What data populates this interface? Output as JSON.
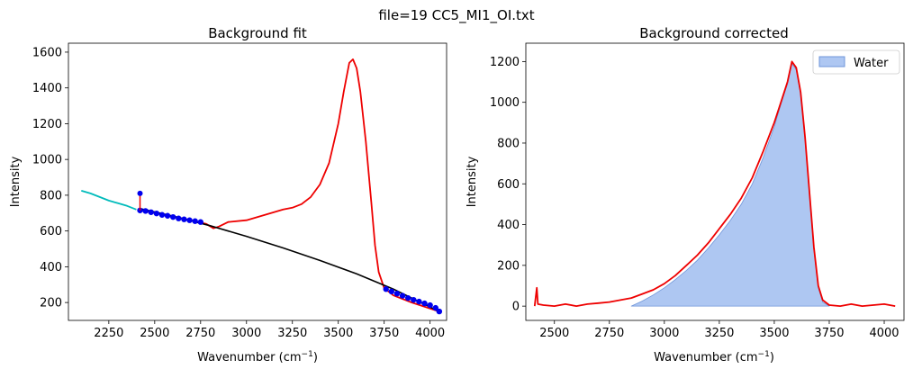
{
  "figure": {
    "suptitle": "file=19 CC5_MI1_OI.txt"
  },
  "chart_data": [
    {
      "type": "line",
      "title": "Background fit",
      "xlabel": "Wavenumber (cm",
      "xlabel_sup": "−1",
      "xlabel_end": ")",
      "ylabel": "Intensity",
      "xlim": [
        2030,
        4090
      ],
      "ylim": [
        100,
        1650
      ],
      "xticks": [
        2250,
        2500,
        2750,
        3000,
        3250,
        3500,
        3750,
        4000
      ],
      "yticks": [
        200,
        400,
        600,
        800,
        1000,
        1200,
        1400,
        1600
      ],
      "colors": {
        "spectrum": "#ee0000",
        "excluded": "#00bbbb",
        "points": "#0000ee",
        "fit": "#000000"
      },
      "series": [
        {
          "role": "spectrum",
          "x": [
            2420,
            2500,
            2600,
            2700,
            2780,
            2820,
            2850,
            2900,
            3000,
            3100,
            3200,
            3250,
            3300,
            3350,
            3400,
            3450,
            3500,
            3530,
            3560,
            3580,
            3600,
            3620,
            3650,
            3680,
            3700,
            3720,
            3750,
            3800,
            3900,
            4050
          ],
          "y": [
            715,
            700,
            680,
            660,
            640,
            615,
            625,
            650,
            660,
            690,
            720,
            730,
            750,
            790,
            860,
            980,
            1200,
            1380,
            1540,
            1560,
            1510,
            1380,
            1100,
            760,
            520,
            370,
            280,
            240,
            200,
            150
          ]
        },
        {
          "role": "excluded",
          "x": [
            2100,
            2150,
            2200,
            2250,
            2300,
            2350,
            2400
          ],
          "y": [
            825,
            810,
            790,
            770,
            755,
            740,
            720
          ]
        },
        {
          "role": "points",
          "x": [
            2420,
            2450,
            2480,
            2510,
            2540,
            2570,
            2600,
            2630,
            2660,
            2690,
            2720,
            2750,
            3760,
            3790,
            3820,
            3850,
            3880,
            3910,
            3940,
            3970,
            4000,
            4030,
            4050
          ],
          "y": [
            715,
            712,
            705,
            698,
            690,
            685,
            678,
            670,
            665,
            660,
            655,
            650,
            275,
            262,
            250,
            238,
            225,
            215,
            205,
            195,
            185,
            170,
            150
          ]
        },
        {
          "role": "fit",
          "x": [
            2420,
            2600,
            2800,
            3000,
            3200,
            3400,
            3600,
            3800,
            4050
          ],
          "y": [
            725,
            683,
            630,
            570,
            505,
            435,
            360,
            275,
            150
          ]
        }
      ]
    },
    {
      "type": "area",
      "title": "Background corrected",
      "xlabel": "Wavenumber (cm",
      "xlabel_sup": "−1",
      "xlabel_end": ")",
      "ylabel": "Intensity",
      "xlim": [
        2370,
        4090
      ],
      "ylim": [
        -70,
        1290
      ],
      "xticks": [
        2500,
        2750,
        3000,
        3250,
        3500,
        3750,
        4000
      ],
      "yticks": [
        0,
        200,
        400,
        600,
        800,
        1000,
        1200
      ],
      "legend": {
        "label": "Water",
        "placement": "top-right"
      },
      "colors": {
        "line": "#ee0000",
        "fill": "#aec7f2",
        "fill_edge": "#6f95d9"
      },
      "series": [
        {
          "role": "spectrum",
          "x": [
            2410,
            2420,
            2425,
            2450,
            2500,
            2550,
            2600,
            2650,
            2700,
            2750,
            2800,
            2850,
            2900,
            2950,
            3000,
            3050,
            3100,
            3150,
            3200,
            3250,
            3300,
            3350,
            3400,
            3450,
            3500,
            3530,
            3560,
            3580,
            3600,
            3620,
            3640,
            3660,
            3680,
            3700,
            3720,
            3750,
            3800,
            3850,
            3900,
            3950,
            4000,
            4050
          ],
          "y": [
            0,
            90,
            10,
            5,
            0,
            10,
            0,
            10,
            15,
            20,
            30,
            40,
            60,
            80,
            110,
            150,
            200,
            250,
            310,
            380,
            450,
            530,
            630,
            760,
            900,
            1000,
            1100,
            1200,
            1170,
            1050,
            830,
            560,
            290,
            100,
            30,
            5,
            0,
            10,
            0,
            5,
            10,
            0
          ]
        },
        {
          "role": "water",
          "x": [
            2850,
            2900,
            2950,
            3000,
            3050,
            3100,
            3150,
            3200,
            3250,
            3300,
            3350,
            3400,
            3450,
            3500,
            3530,
            3560,
            3580,
            3600,
            3620,
            3640,
            3660,
            3680,
            3700,
            3720,
            3750
          ],
          "y": [
            0,
            25,
            55,
            90,
            130,
            175,
            225,
            285,
            350,
            420,
            500,
            600,
            730,
            880,
            990,
            1090,
            1190,
            1160,
            1040,
            820,
            550,
            280,
            90,
            20,
            0
          ]
        }
      ]
    }
  ]
}
